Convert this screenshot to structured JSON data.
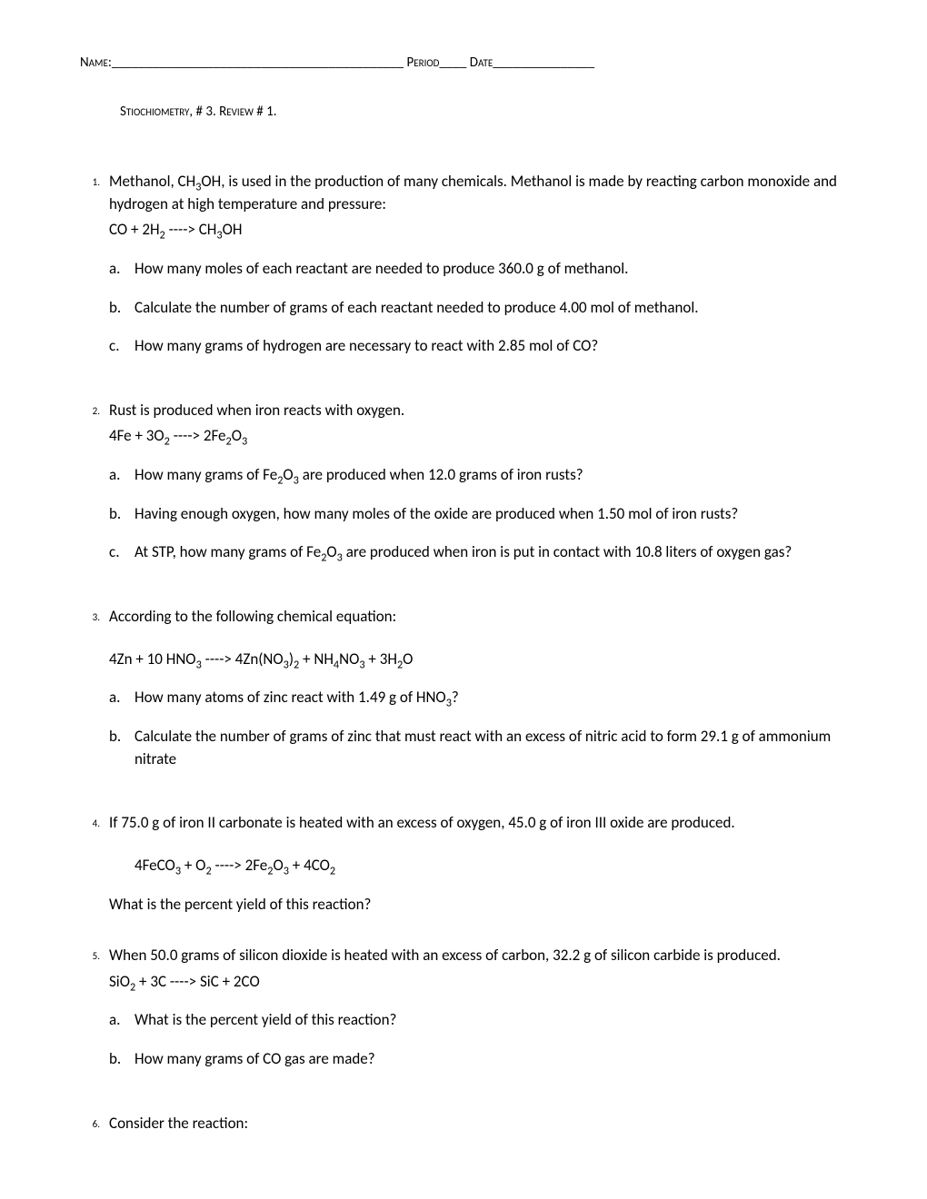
{
  "header": {
    "name_label": "Name:",
    "name_blank": "___________________________________________",
    "period_label": "Period",
    "period_blank": "____",
    "date_label": "Date",
    "date_blank": "_______________"
  },
  "title": "Stiochiometry, # 3. Review # 1.",
  "questions": [
    {
      "num": "1.",
      "text_parts": [
        "Methanol, CH",
        "3",
        "OH, is used in the production of many chemicals. Methanol is made by reacting carbon monoxide and hydrogen at high temperature and pressure:"
      ],
      "equation_parts": [
        "CO + 2H",
        "2",
        "  ---->   CH",
        "3",
        "OH"
      ],
      "equation_indent": false,
      "subs": [
        {
          "letter": "a.",
          "parts": [
            "How many moles of each reactant are needed to produce 360.0 g of methanol."
          ]
        },
        {
          "letter": "b.",
          "parts": [
            "Calculate the number of grams of each reactant needed to produce 4.00 mol of methanol."
          ]
        },
        {
          "letter": "c.",
          "parts": [
            "How many grams of hydrogen are necessary to react with 2.85 mol of CO?"
          ]
        }
      ]
    },
    {
      "num": "2.",
      "text_parts": [
        "Rust is produced when iron reacts with oxygen."
      ],
      "equation_parts": [
        "4Fe + 3O",
        "2",
        "    ---->    2Fe",
        "2",
        "O",
        "3"
      ],
      "equation_indent": false,
      "subs": [
        {
          "letter": "a.",
          "parts": [
            "How many grams of Fe",
            "2",
            "O",
            "3",
            " are produced when 12.0 grams of iron rusts?"
          ]
        },
        {
          "letter": "b.",
          "parts": [
            "Having enough oxygen, how many moles of the oxide are produced when 1.50 mol of iron rusts?"
          ]
        },
        {
          "letter": "c.",
          "parts": [
            "At STP, how many grams of Fe",
            "2",
            "O",
            "3",
            " are produced when iron is put in contact with 10.8 liters of oxygen gas?"
          ]
        }
      ]
    },
    {
      "num": "3.",
      "text_parts": [
        "According to the following chemical equation:"
      ],
      "equation_parts": [
        "4Zn + 10 HNO",
        "3",
        "   ---->   4Zn(NO",
        "3",
        ")",
        "2",
        " + NH",
        "4",
        "NO",
        "3",
        " + 3H",
        "2",
        "O"
      ],
      "equation_indent": false,
      "equation_spaced": true,
      "subs": [
        {
          "letter": "a.",
          "parts": [
            "How many atoms of zinc react with 1.49 g of HNO",
            "3",
            "?"
          ]
        },
        {
          "letter": "b.",
          "parts": [
            "Calculate the number of grams of zinc that must react with an excess of nitric acid to form 29.1 g of ammonium nitrate"
          ]
        }
      ]
    },
    {
      "num": "4.",
      "text_parts": [
        "If 75.0 g of iron II carbonate is heated with an excess of oxygen, 45.0 g of iron III oxide are produced."
      ],
      "equation_parts": [
        "4FeCO",
        "3",
        " + O",
        "2",
        "  ---->   2Fe",
        "2",
        "O",
        "3",
        " +  4CO",
        "2"
      ],
      "equation_indent": true,
      "equation_spaced": true,
      "follow_text": "What is the percent yield of this reaction?",
      "subs": []
    },
    {
      "num": "5.",
      "text_parts": [
        "When 50.0 grams of silicon dioxide is heated with an excess of carbon, 32.2 g of silicon carbide is produced."
      ],
      "equation_parts": [
        "SiO",
        "2",
        " + 3C   ---->    SiC  + 2CO"
      ],
      "equation_indent": false,
      "subs": [
        {
          "letter": "a.",
          "parts": [
            "What is the percent yield of this reaction?"
          ]
        },
        {
          "letter": "b.",
          "parts": [
            "How many grams of CO gas are made?"
          ]
        }
      ]
    },
    {
      "num": "6.",
      "text_parts": [
        "Consider the reaction:"
      ],
      "equation_parts": [],
      "subs": []
    }
  ]
}
